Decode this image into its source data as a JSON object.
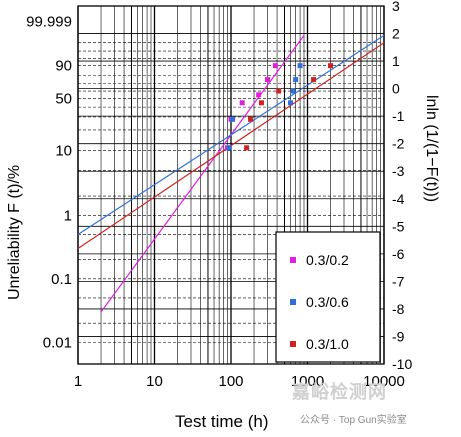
{
  "chart_data": {
    "type": "scatter",
    "xlabel": "Test time (h)",
    "ylabel": "Unreliability F (t)/%",
    "ylabel_right": "lnln (1/(1−F(t)))",
    "x_scale": "log",
    "x_range": [
      1,
      10000
    ],
    "x_ticks": [
      "1",
      "10",
      "100",
      "1000",
      "10000"
    ],
    "y_ticks_left": [
      "99.999",
      "90",
      "50",
      "10",
      "1",
      "0.1",
      "0.01"
    ],
    "y_ticks_right": [
      "3",
      "2",
      "1",
      "0",
      "-1",
      "-2",
      "-3",
      "-4",
      "-5",
      "-6",
      "-7",
      "-8",
      "-9",
      "-10"
    ],
    "y_range_right": [
      -10,
      3
    ],
    "grid": true,
    "legend_position": "bottom-right",
    "series": [
      {
        "name": "0.3/0.2",
        "color": "#e01ee0",
        "points": [
          [
            90,
            11
          ],
          [
            100,
            28
          ],
          [
            140,
            45
          ],
          [
            230,
            55
          ],
          [
            300,
            75
          ],
          [
            380,
            90
          ]
        ],
        "fit_line": [
          [
            2,
            0.03
          ],
          [
            900,
            99.9
          ]
        ]
      },
      {
        "name": "0.3/0.6",
        "color": "#2f6fd8",
        "points": [
          [
            95,
            11
          ],
          [
            105,
            28
          ],
          [
            600,
            45
          ],
          [
            650,
            60
          ],
          [
            700,
            75
          ],
          [
            800,
            90
          ]
        ],
        "fit_line": [
          [
            1,
            0.5
          ],
          [
            10000,
            99.9
          ]
        ]
      },
      {
        "name": "0.3/1.0",
        "color": "#d02020",
        "points": [
          [
            160,
            11
          ],
          [
            180,
            28
          ],
          [
            250,
            45
          ],
          [
            420,
            60
          ],
          [
            1200,
            75
          ],
          [
            2000,
            90
          ]
        ],
        "fit_line": [
          [
            1,
            0.3
          ],
          [
            10000,
            99.5
          ]
        ]
      }
    ]
  },
  "watermark": {
    "main": "嘉峪检测网",
    "sub": "公众号 · Top Gun实验室"
  }
}
